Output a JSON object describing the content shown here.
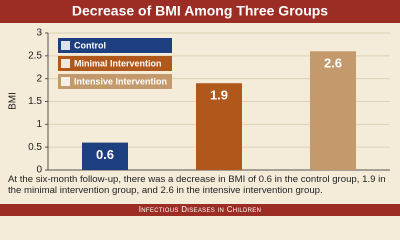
{
  "chart_data": {
    "type": "bar",
    "title": "Decrease of BMI Among Three Groups",
    "ylabel": "BMI",
    "categories": [
      null
    ],
    "series": [
      {
        "name": "Control",
        "color": "#1d3f80",
        "values": [
          0.6
        ]
      },
      {
        "name": "Minimal Intervention",
        "color": "#b0571c",
        "values": [
          1.9
        ]
      },
      {
        "name": "Intensive Intervention",
        "color": "#c49a6c",
        "values": [
          2.6
        ]
      }
    ],
    "ylim": [
      0,
      3
    ],
    "yticks": [
      0,
      0.5,
      1,
      1.5,
      2,
      2.5,
      3
    ],
    "grid": true,
    "legend": "top-left",
    "caption": "At the six-month follow-up, there was a decrease in BMI of 0.6 in the control group, 1.9 in the minimal intervention group, and 2.6 in the intensive intervention group.",
    "footer": "Infectious Diseases in Children"
  }
}
